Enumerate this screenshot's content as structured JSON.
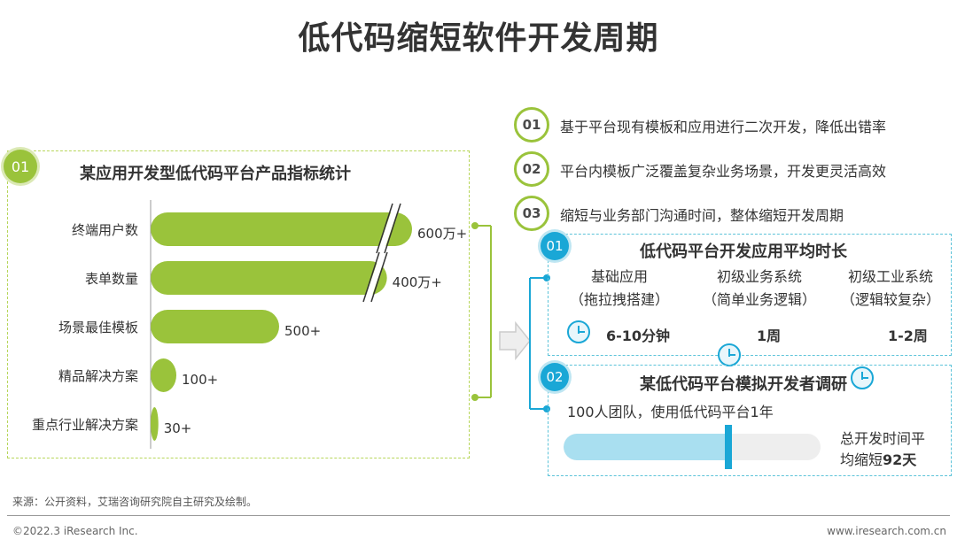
{
  "title": "低代码缩短软件开发周期",
  "left_panel": {
    "badge": "01",
    "subtitle": "某应用开发型低代码平台产品指标统计"
  },
  "chart_data": {
    "type": "bar",
    "orientation": "horizontal",
    "title": "某应用开发型低代码平台产品指标统计",
    "categories": [
      "终端用户数",
      "表单数量",
      "场景最佳模板",
      "精品解决方案",
      "重点行业解决方案"
    ],
    "values": [
      6000000,
      4000000,
      500,
      100,
      30
    ],
    "value_labels": [
      "600万+",
      "400万+",
      "500+",
      "100+",
      "30+"
    ],
    "axis_break": true,
    "colors": {
      "bar": "#9ac33b"
    }
  },
  "right_list": [
    {
      "num": "01",
      "text": "基于平台现有模板和应用进行二次开发，降低出错率"
    },
    {
      "num": "02",
      "text": "平台内模板广泛覆盖复杂业务场景，开发更灵活高效"
    },
    {
      "num": "03",
      "text": "缩短与业务部门沟通时间，整体缩短开发周期"
    }
  ],
  "panel_a": {
    "badge": "01",
    "title": "低代码平台开发应用平均时长",
    "columns": [
      {
        "line1": "基础应用",
        "line2": "（拖拉拽搭建）",
        "icon": "clock-icon",
        "duration": "6-10分钟"
      },
      {
        "line1": "初级业务系统",
        "line2": "（简单业务逻辑）",
        "icon": "clock-icon",
        "duration": "1周"
      },
      {
        "line1": "初级工业系统",
        "line2": "（逻辑较复杂）",
        "icon": "clock-icon",
        "duration": "1-2周"
      }
    ]
  },
  "panel_b": {
    "badge": "02",
    "title": "某低代码平台模拟开发者调研",
    "team": "100人团队，使用低代码平台1年",
    "result_line1": "总开发时间平",
    "result_line2_prefix": "均缩短",
    "result_value": "92天",
    "progress_fraction": 0.64
  },
  "source": "来源：公开资料，艾瑞咨询研究院自主研究及绘制。",
  "copyright": "©2022.3 iResearch Inc.",
  "website": "www.iresearch.com.cn",
  "colors": {
    "green": "#9ac33b",
    "blue": "#1aa7d6",
    "light_blue": "#a9dff0"
  }
}
